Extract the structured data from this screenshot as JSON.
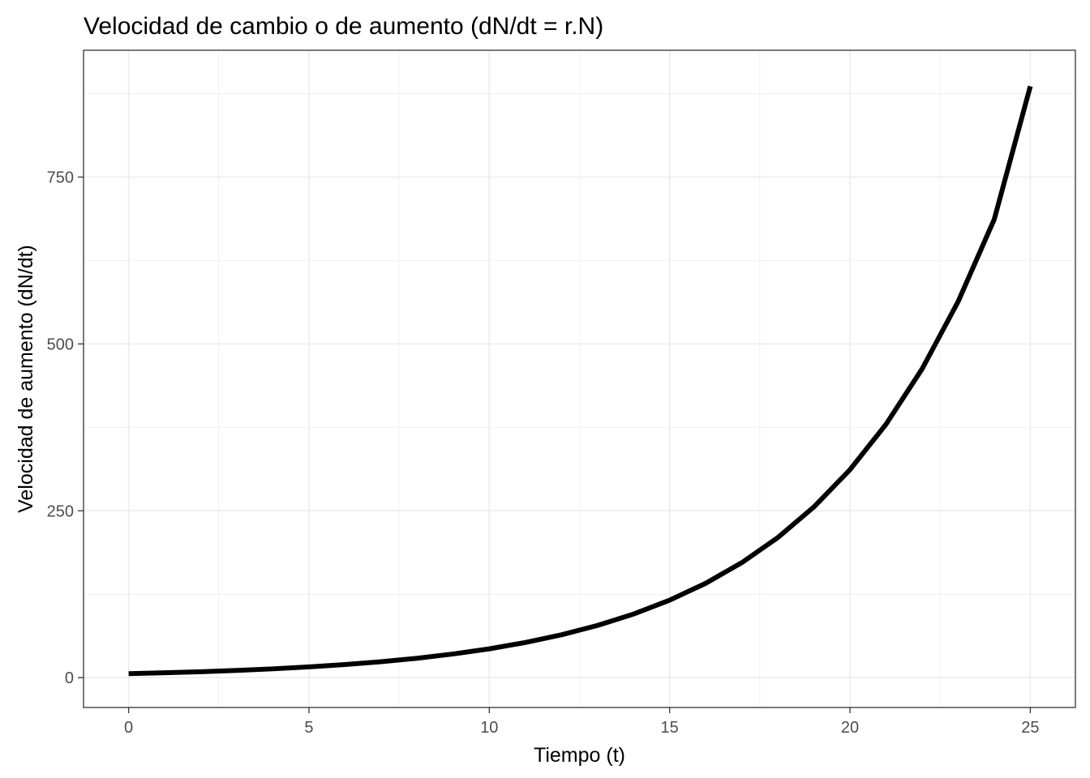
{
  "chart_data": {
    "type": "line",
    "title": "Velocidad de cambio o de aumento (dN/dt = r.N)",
    "xlabel": "Tiempo (t)",
    "ylabel": "Velocidad de aumento (dN/dt)",
    "xlim": [
      -1.25,
      26.25
    ],
    "ylim": [
      -44.7,
      940
    ],
    "x_ticks": [
      0,
      5,
      10,
      15,
      20,
      25
    ],
    "y_ticks": [
      0,
      250,
      500,
      750
    ],
    "x_tick_labels": [
      "0",
      "5",
      "10",
      "15",
      "20",
      "25"
    ],
    "y_tick_labels": [
      "0",
      "250",
      "500",
      "750"
    ],
    "grid": true,
    "legend": "none",
    "line_color": "#000000",
    "series": [
      {
        "x": [
          0,
          1,
          2,
          3,
          4,
          5,
          6,
          7,
          8,
          9,
          10,
          11,
          12,
          13,
          14,
          15,
          16,
          17,
          18,
          19,
          20,
          21,
          22,
          23,
          24,
          25
        ],
        "values": [
          6,
          7.3,
          8.9,
          10.8,
          13.2,
          16.1,
          19.6,
          23.9,
          29.1,
          35.5,
          43.2,
          52.7,
          64.2,
          78.2,
          95.3,
          116.1,
          141.4,
          172.3,
          209.9,
          255.8,
          311.6,
          379.7,
          462.6,
          563.6,
          686.7,
          886
        ]
      }
    ]
  }
}
